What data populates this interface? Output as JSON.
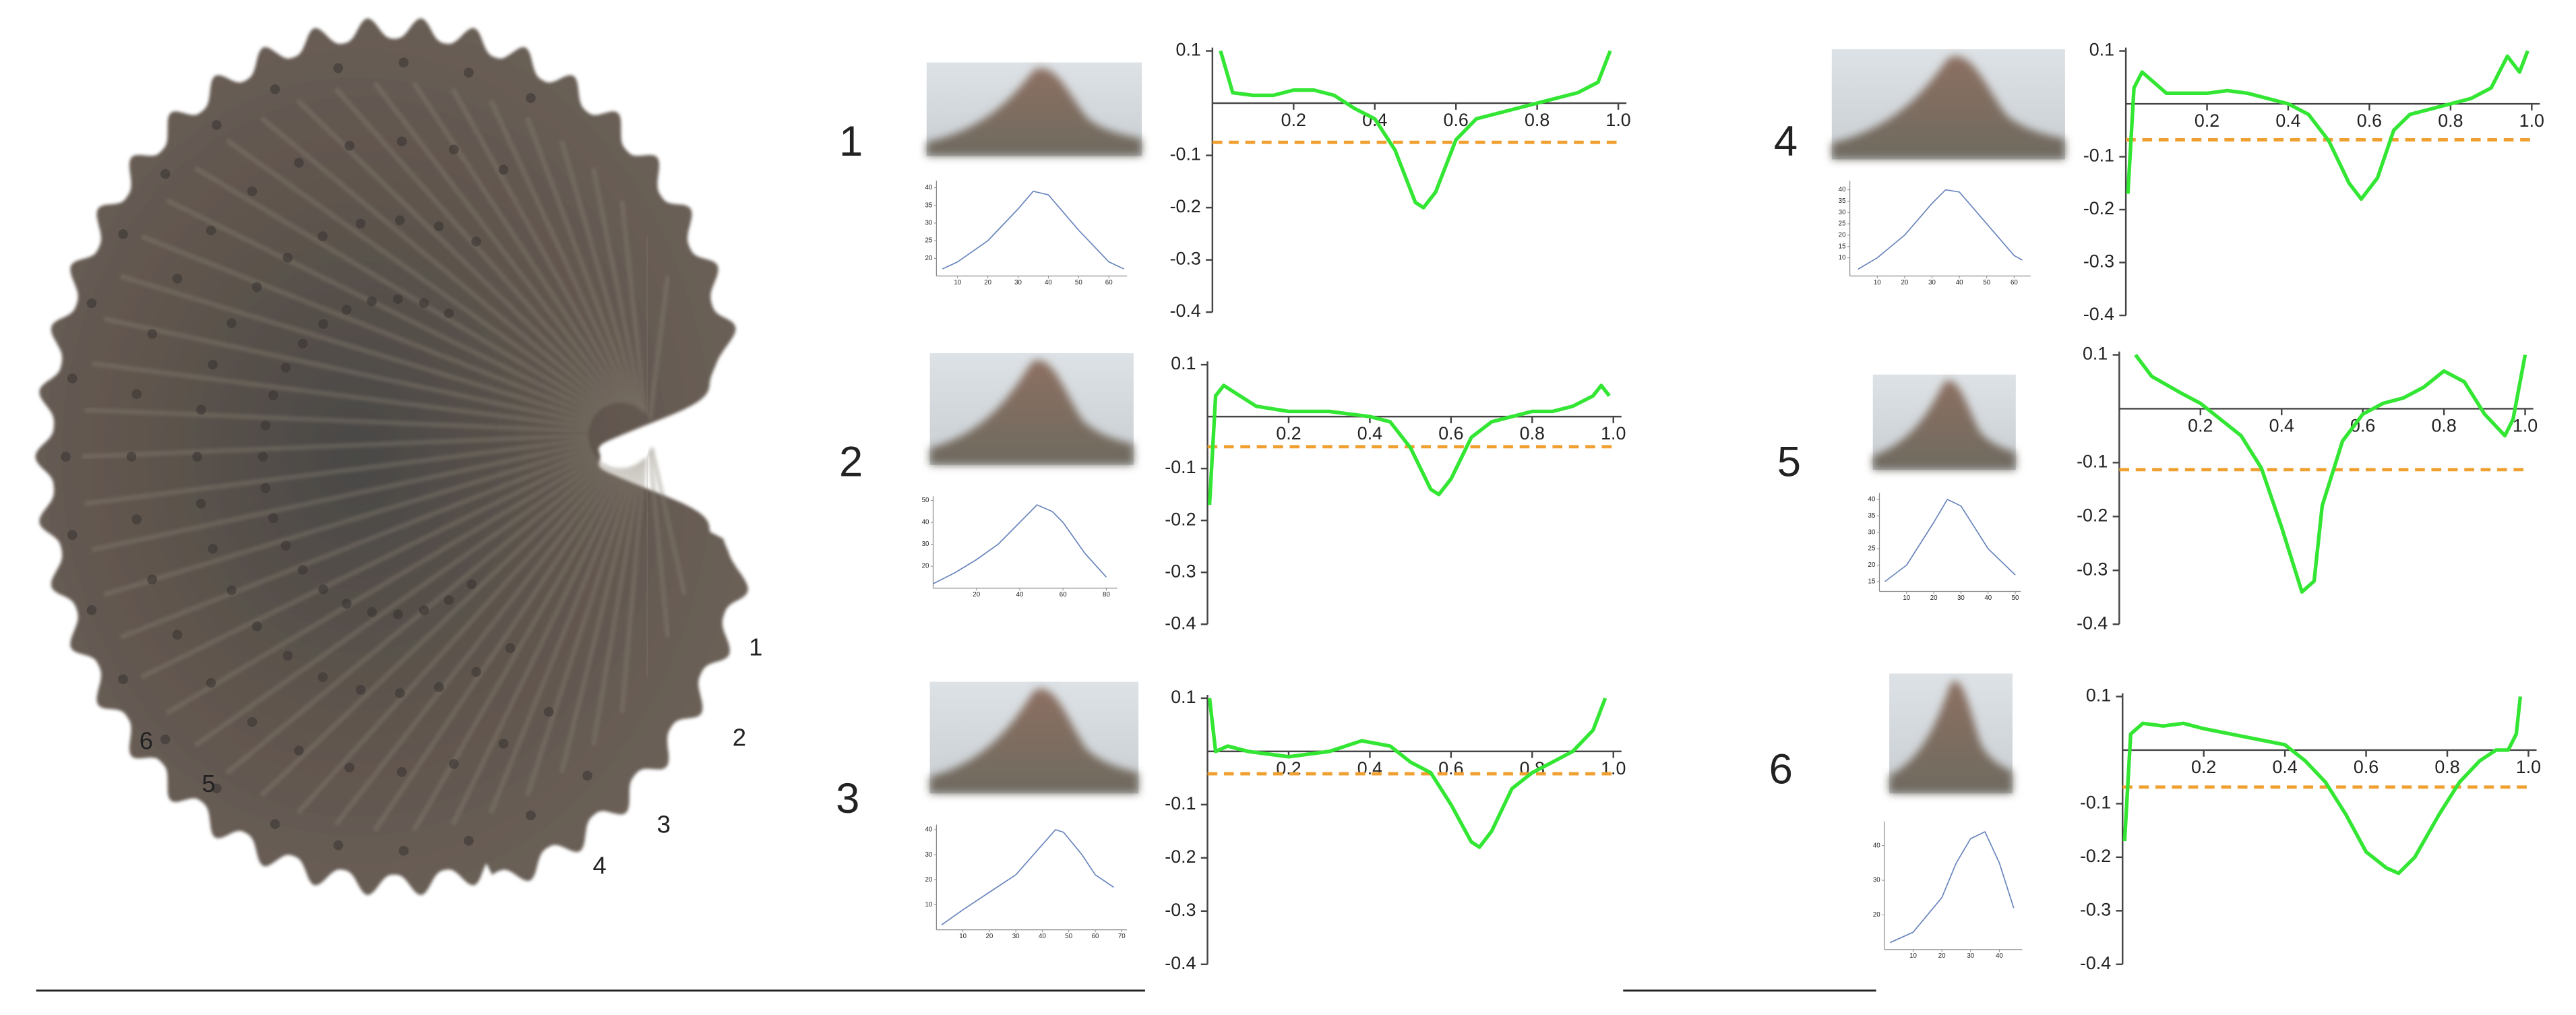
{
  "specimen_labels": [
    "1",
    "2",
    "3",
    "4",
    "5",
    "6"
  ],
  "panel_labels": [
    "1",
    "2",
    "3",
    "4",
    "5",
    "6"
  ],
  "chart_data": [
    {
      "type": "line",
      "xlim": [
        0,
        1.02
      ],
      "ylim": [
        -0.4,
        0.1
      ],
      "xticks": [
        0.2,
        0.4,
        0.6,
        0.8,
        {
          "value": 1,
          "label": "1.0"
        }
      ],
      "yticks": [
        0.1,
        -0.1,
        -0.2,
        -0.3,
        -0.4
      ],
      "x": [
        0.02,
        0.05,
        0.1,
        0.15,
        0.2,
        0.25,
        0.3,
        0.35,
        0.4,
        0.45,
        0.5,
        0.52,
        0.55,
        0.6,
        0.65,
        0.7,
        0.75,
        0.8,
        0.85,
        0.9,
        0.95,
        0.98
      ],
      "series": [
        {
          "color": "#33e633",
          "values": [
            0.1,
            0.02,
            0.015,
            0.015,
            0.025,
            0.025,
            0.015,
            -0.01,
            -0.03,
            -0.09,
            -0.19,
            -0.2,
            -0.17,
            -0.07,
            -0.03,
            -0.02,
            -0.01,
            0.0,
            0.01,
            0.02,
            0.04,
            0.1
          ]
        }
      ],
      "threshold": -0.075,
      "threshold_color": "#f0a030"
    },
    {
      "type": "line",
      "xlim": [
        0,
        1.02
      ],
      "ylim": [
        -0.4,
        0.1
      ],
      "xticks": [
        0.2,
        0.4,
        0.6,
        0.8,
        {
          "value": 1,
          "label": "1.0"
        }
      ],
      "yticks": [
        0.1,
        -0.1,
        -0.2,
        -0.3,
        -0.4
      ],
      "x": [
        0.005,
        0.02,
        0.04,
        0.08,
        0.12,
        0.2,
        0.3,
        0.4,
        0.45,
        0.5,
        0.55,
        0.57,
        0.6,
        0.65,
        0.7,
        0.75,
        0.8,
        0.85,
        0.9,
        0.95,
        0.97,
        0.99
      ],
      "series": [
        {
          "color": "#33e633",
          "values": [
            -0.17,
            0.04,
            0.06,
            0.04,
            0.02,
            0.01,
            0.01,
            0.0,
            -0.01,
            -0.06,
            -0.14,
            -0.15,
            -0.12,
            -0.04,
            -0.01,
            0.0,
            0.01,
            0.01,
            0.02,
            0.04,
            0.06,
            0.04
          ]
        }
      ],
      "threshold": -0.058,
      "threshold_color": "#f0a030"
    },
    {
      "type": "line",
      "xlim": [
        0,
        1.02
      ],
      "ylim": [
        -0.4,
        0.1
      ],
      "xticks": [
        0.2,
        0.4,
        0.6,
        0.8,
        {
          "value": 1,
          "label": "1.0"
        }
      ],
      "yticks": [
        0.1,
        -0.1,
        -0.2,
        -0.3,
        -0.4
      ],
      "x": [
        0.005,
        0.02,
        0.05,
        0.1,
        0.2,
        0.3,
        0.38,
        0.45,
        0.5,
        0.55,
        0.6,
        0.65,
        0.67,
        0.7,
        0.75,
        0.8,
        0.85,
        0.9,
        0.95,
        0.98
      ],
      "series": [
        {
          "color": "#33e633",
          "values": [
            0.1,
            0.0,
            0.01,
            0.0,
            -0.01,
            0.0,
            0.02,
            0.01,
            -0.02,
            -0.04,
            -0.1,
            -0.17,
            -0.18,
            -0.15,
            -0.07,
            -0.04,
            -0.02,
            0.0,
            0.04,
            0.1
          ]
        }
      ],
      "threshold": -0.042,
      "threshold_color": "#f0a030"
    },
    {
      "type": "line",
      "xlim": [
        0,
        1.02
      ],
      "ylim": [
        -0.4,
        0.1
      ],
      "xticks": [
        0.2,
        0.4,
        0.6,
        0.8,
        {
          "value": 1,
          "label": "1.0"
        }
      ],
      "yticks": [
        0.1,
        -0.1,
        -0.2,
        -0.3,
        -0.4
      ],
      "x": [
        0.005,
        0.02,
        0.04,
        0.07,
        0.1,
        0.2,
        0.25,
        0.3,
        0.4,
        0.45,
        0.5,
        0.55,
        0.58,
        0.62,
        0.66,
        0.7,
        0.8,
        0.85,
        0.9,
        0.94,
        0.97,
        0.99
      ],
      "series": [
        {
          "color": "#33e633",
          "values": [
            -0.17,
            0.03,
            0.06,
            0.04,
            0.02,
            0.02,
            0.025,
            0.02,
            0.0,
            -0.02,
            -0.07,
            -0.15,
            -0.18,
            -0.14,
            -0.05,
            -0.02,
            0.0,
            0.01,
            0.03,
            0.09,
            0.06,
            0.1
          ]
        }
      ],
      "threshold": -0.068,
      "threshold_color": "#f0a030"
    },
    {
      "type": "line",
      "xlim": [
        0,
        1.02
      ],
      "ylim": [
        -0.4,
        0.1
      ],
      "xticks": [
        0.2,
        0.4,
        0.6,
        0.8,
        {
          "value": 1,
          "label": "1.0"
        }
      ],
      "yticks": [
        0.1,
        -0.1,
        -0.2,
        -0.3,
        -0.4
      ],
      "x": [
        0.04,
        0.08,
        0.15,
        0.2,
        0.25,
        0.3,
        0.35,
        0.4,
        0.45,
        0.48,
        0.5,
        0.55,
        0.6,
        0.65,
        0.7,
        0.75,
        0.8,
        0.85,
        0.9,
        0.95,
        0.97,
        1.0
      ],
      "series": [
        {
          "color": "#33e633",
          "values": [
            0.1,
            0.06,
            0.03,
            0.01,
            -0.02,
            -0.05,
            -0.11,
            -0.22,
            -0.34,
            -0.32,
            -0.18,
            -0.06,
            -0.01,
            0.01,
            0.02,
            0.04,
            0.07,
            0.05,
            -0.01,
            -0.05,
            -0.02,
            0.1
          ]
        }
      ],
      "threshold": -0.113,
      "threshold_color": "#f0a030"
    },
    {
      "type": "line",
      "xlim": [
        0,
        1.02
      ],
      "ylim": [
        -0.4,
        0.1
      ],
      "xticks": [
        0.2,
        0.4,
        0.6,
        0.8,
        {
          "value": 1,
          "label": "1.0"
        }
      ],
      "yticks": [
        0.1,
        -0.1,
        -0.2,
        -0.3,
        -0.4
      ],
      "x": [
        0.005,
        0.02,
        0.05,
        0.1,
        0.15,
        0.2,
        0.3,
        0.4,
        0.45,
        0.5,
        0.55,
        0.6,
        0.65,
        0.68,
        0.72,
        0.78,
        0.83,
        0.88,
        0.92,
        0.95,
        0.97,
        0.98
      ],
      "series": [
        {
          "color": "#33e633",
          "values": [
            -0.17,
            0.03,
            0.05,
            0.045,
            0.05,
            0.04,
            0.025,
            0.01,
            -0.02,
            -0.06,
            -0.12,
            -0.19,
            -0.22,
            -0.23,
            -0.2,
            -0.12,
            -0.06,
            -0.02,
            0.0,
            0.0,
            0.03,
            0.1
          ]
        }
      ],
      "threshold": -0.069,
      "threshold_color": "#f0a030"
    },
    {
      "type": "line",
      "xlim": [
        3,
        66
      ],
      "ylim": [
        15,
        42
      ],
      "xticks": [
        10,
        20,
        30,
        40,
        50,
        60
      ],
      "yticks": [
        20,
        25,
        30,
        35,
        40
      ],
      "x": [
        5,
        10,
        20,
        30,
        35,
        40,
        50,
        60,
        65
      ],
      "series": [
        {
          "color": "#6a86bd",
          "values": [
            17,
            19,
            25,
            34,
            39,
            38,
            28,
            19,
            17
          ]
        }
      ]
    },
    {
      "type": "line",
      "xlim": [
        0,
        85
      ],
      "ylim": [
        10,
        52
      ],
      "xticks": [
        20,
        40,
        60,
        80
      ],
      "yticks": [
        20,
        30,
        40,
        50
      ],
      "x": [
        0,
        10,
        20,
        30,
        40,
        48,
        55,
        60,
        70,
        80
      ],
      "series": [
        {
          "color": "#6a86bd",
          "values": [
            12,
            17,
            23,
            30,
            40,
            48,
            45,
            40,
            26,
            15
          ]
        }
      ]
    },
    {
      "type": "line",
      "xlim": [
        0,
        72
      ],
      "ylim": [
        0,
        42
      ],
      "xticks": [
        10,
        20,
        30,
        40,
        50,
        60,
        70
      ],
      "yticks": [
        10,
        20,
        30,
        40
      ],
      "x": [
        2,
        10,
        20,
        30,
        40,
        45,
        48,
        55,
        60,
        67
      ],
      "series": [
        {
          "color": "#6a86bd",
          "values": [
            2,
            8,
            15,
            22,
            34,
            40,
            39,
            30,
            22,
            17
          ]
        }
      ]
    },
    {
      "type": "line",
      "xlim": [
        0,
        66
      ],
      "ylim": [
        2,
        44
      ],
      "xticks": [
        10,
        20,
        30,
        40,
        50,
        60
      ],
      "yticks": [
        10,
        15,
        20,
        25,
        30,
        35,
        40
      ],
      "x": [
        3,
        10,
        20,
        30,
        35,
        40,
        50,
        60,
        63
      ],
      "series": [
        {
          "color": "#6a86bd",
          "values": [
            5,
            10,
            20,
            34,
            40,
            39,
            25,
            11,
            9
          ]
        }
      ]
    },
    {
      "type": "line",
      "xlim": [
        0,
        52
      ],
      "ylim": [
        12,
        42
      ],
      "xticks": [
        10,
        20,
        30,
        40,
        50
      ],
      "yticks": [
        15,
        20,
        25,
        30,
        35,
        40
      ],
      "x": [
        2,
        10,
        20,
        25,
        30,
        40,
        50
      ],
      "series": [
        {
          "color": "#6a86bd",
          "values": [
            15,
            20,
            33,
            40,
            38,
            25,
            17
          ]
        }
      ]
    },
    {
      "type": "line",
      "xlim": [
        0,
        48
      ],
      "ylim": [
        10,
        47
      ],
      "xticks": [
        10,
        20,
        30,
        40
      ],
      "yticks": [
        20,
        30,
        40
      ],
      "x": [
        2,
        10,
        20,
        25,
        30,
        35,
        40,
        45
      ],
      "series": [
        {
          "color": "#6a86bd",
          "values": [
            12,
            15,
            25,
            35,
            42,
            44,
            35,
            22
          ]
        }
      ]
    }
  ]
}
